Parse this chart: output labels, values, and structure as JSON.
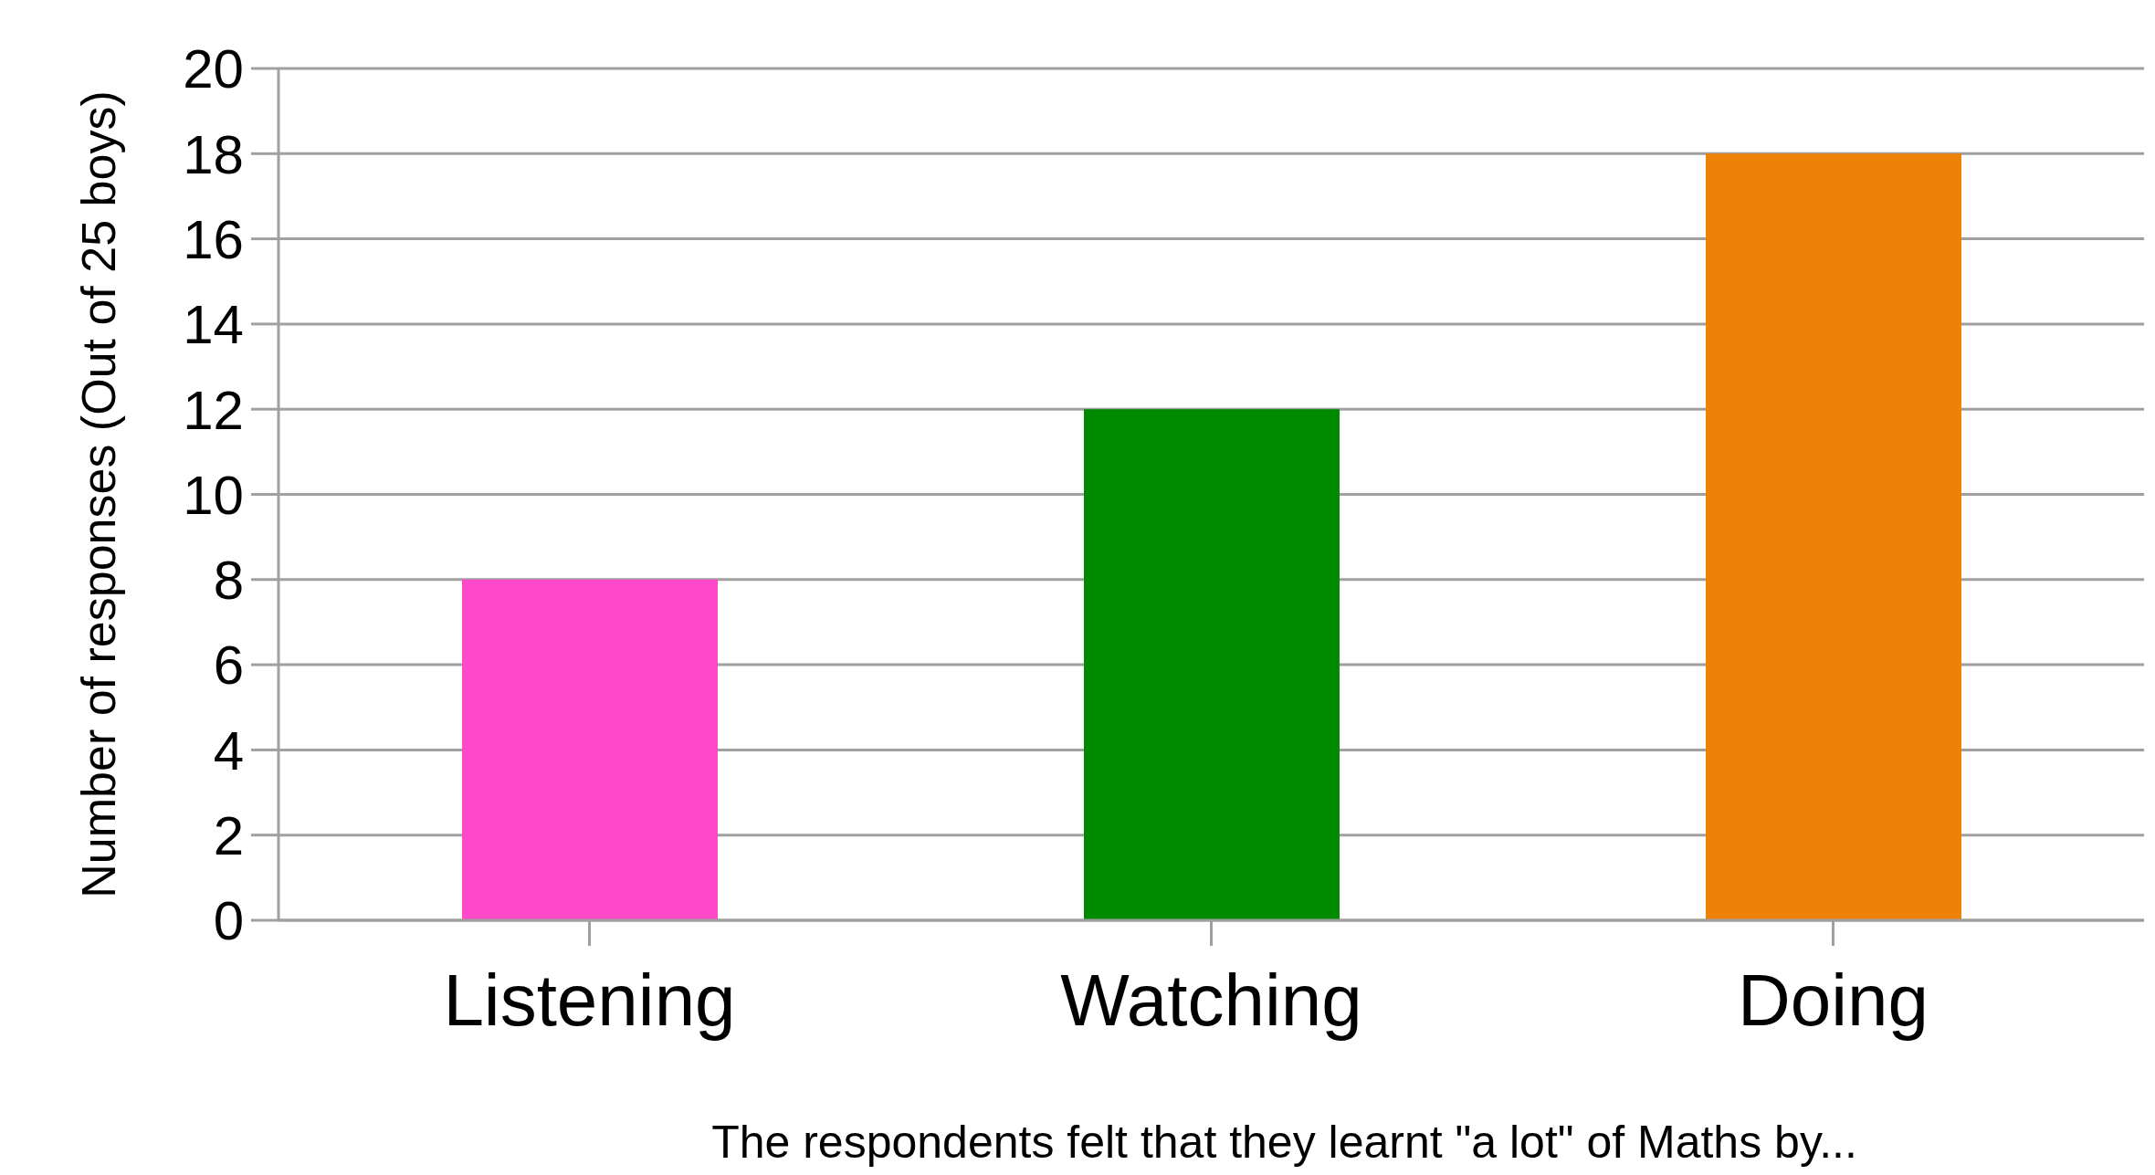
{
  "chart_data": {
    "type": "bar",
    "xlabel": "The respondents felt that they learnt \"a lot\" of Maths by...",
    "ylabel": "Number of responses (Out of 25 boys)",
    "categories": [
      "Listening",
      "Watching",
      "Doing"
    ],
    "values": [
      8,
      12,
      18
    ],
    "colors": [
      "#ff49c8",
      "#008a00",
      "#ee8208"
    ],
    "ylim": [
      0,
      20
    ],
    "yticks": [
      0,
      2,
      4,
      6,
      8,
      10,
      12,
      14,
      16,
      18,
      20
    ],
    "grid": "y"
  }
}
